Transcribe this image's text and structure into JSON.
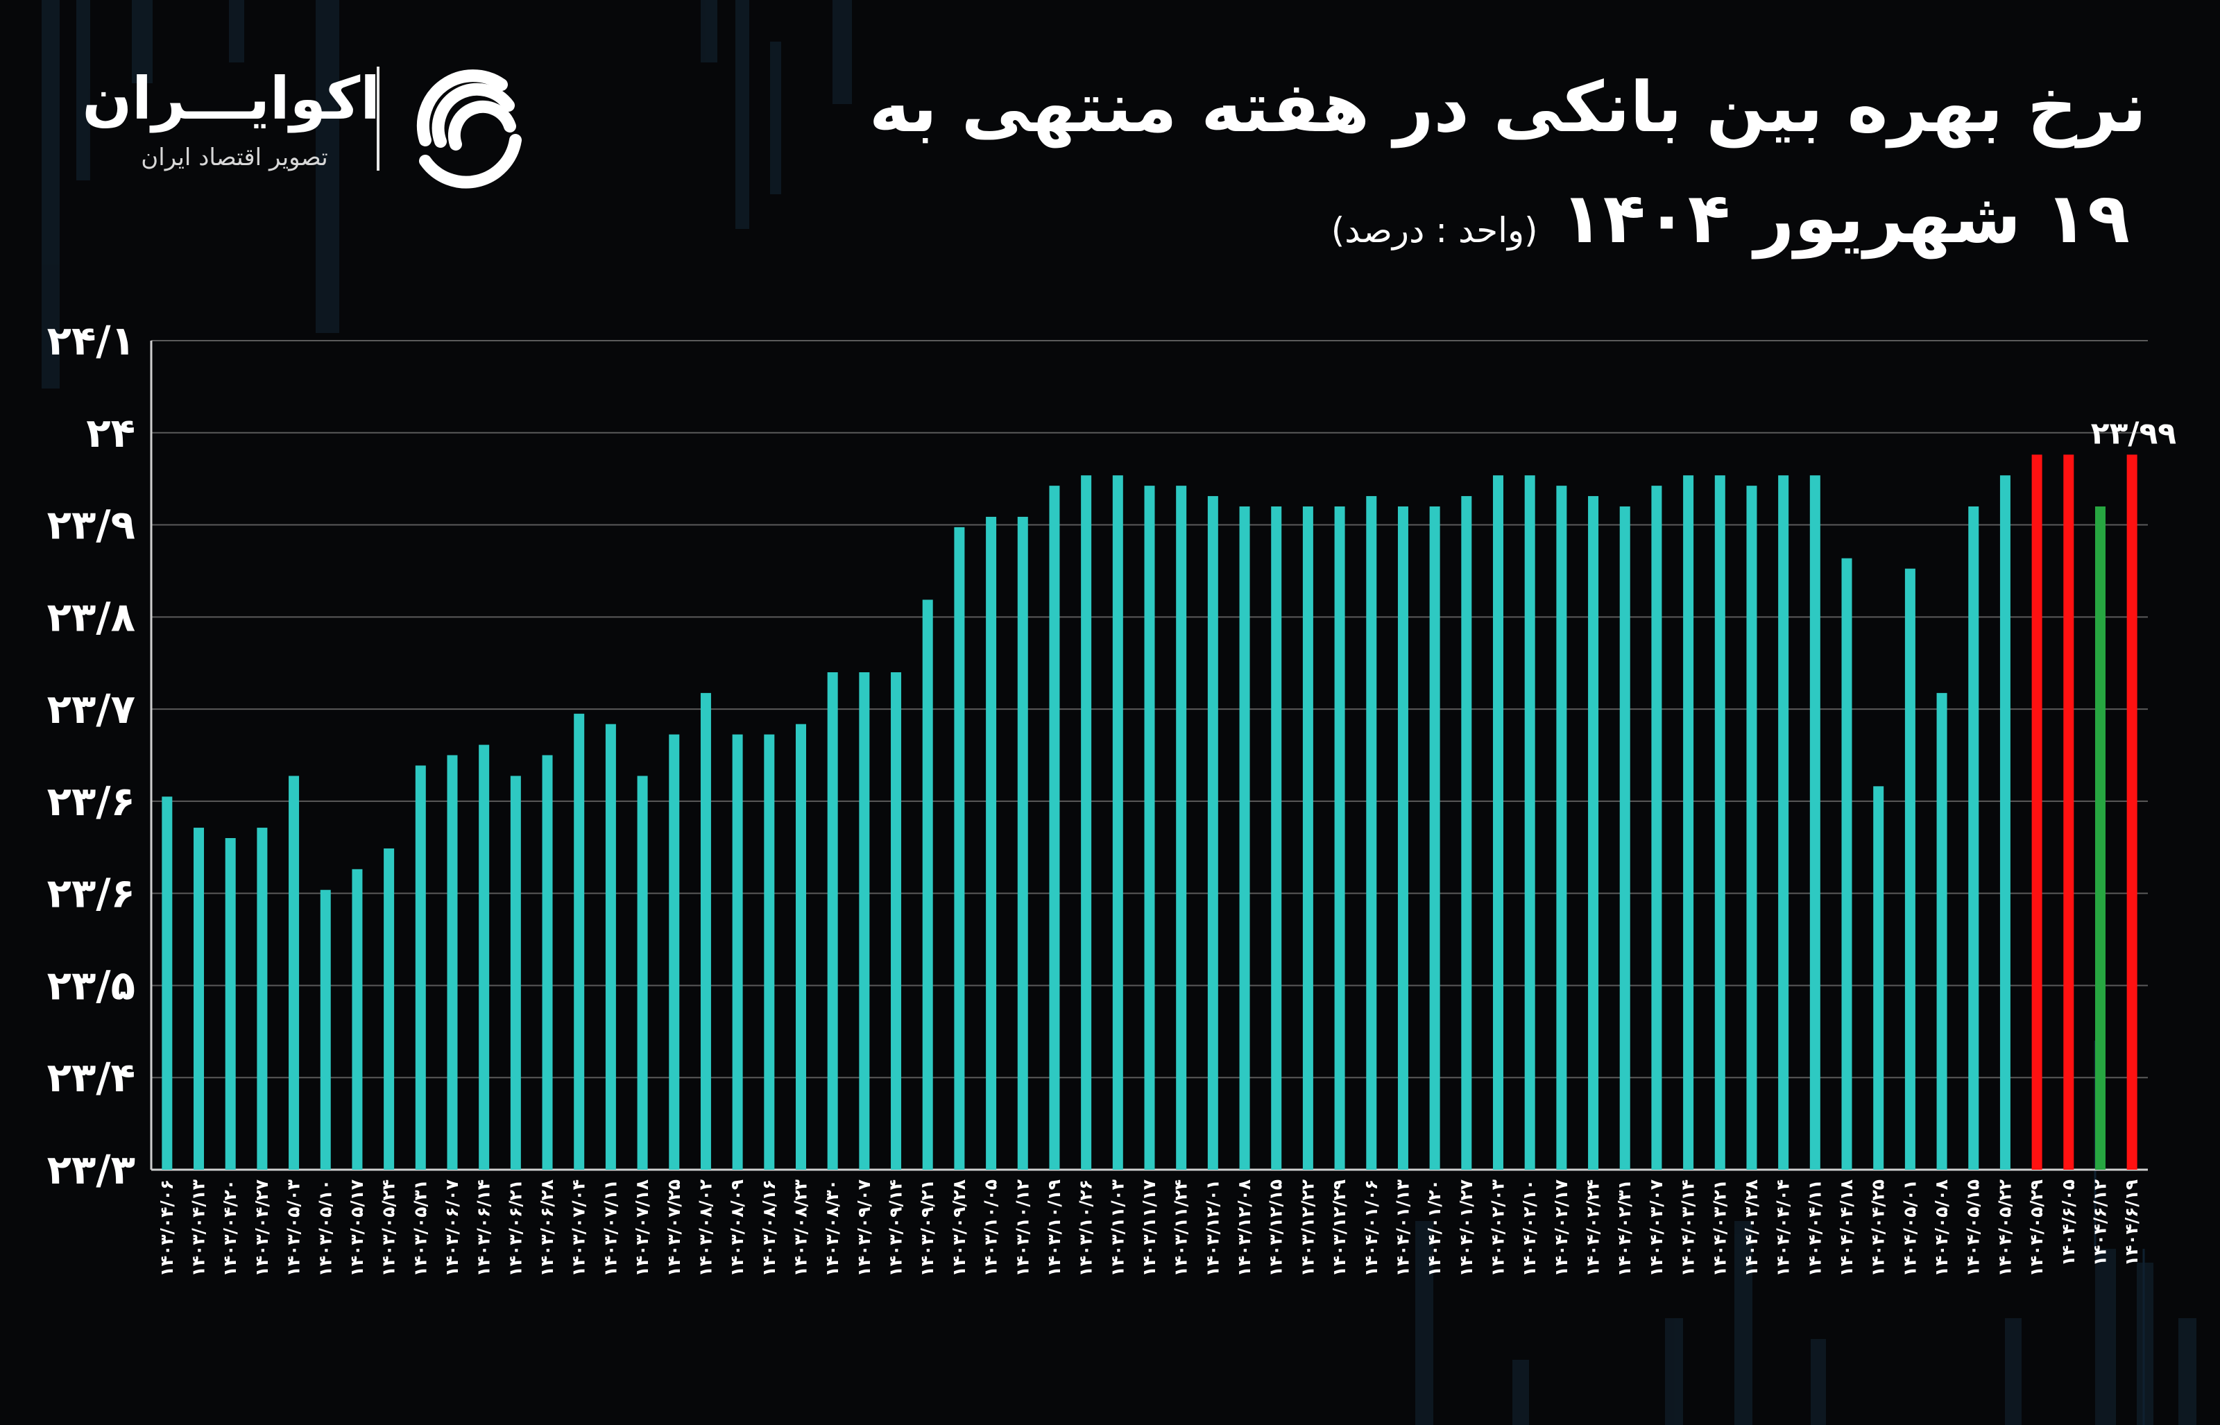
{
  "brand": {
    "name": "اکوایـــران",
    "tagline": "تصویر اقتصاد ایران",
    "logo_icon": "ecoiran-swirl-logo"
  },
  "title": {
    "line1": "نرخ بهره بین بانکی در هفته منتهی به",
    "line2": "۱۹ شهریور ۱۴۰۴",
    "unit": "(واحد : درصد)"
  },
  "colors": {
    "background": "#060709",
    "bar_default": "#2ec9c2",
    "bar_red": "#ff1111",
    "bar_green": "#27a641",
    "grid": "#5a5a5a",
    "text": "#ffffff"
  },
  "chart_data": {
    "type": "bar",
    "ylim": [
      23.3,
      24.1
    ],
    "yticks": [
      "۲۳/۳",
      "۲۳/۴",
      "۲۳/۵",
      "۲۳/۶",
      "۲۳/۶",
      "۲۳/۷",
      "۲۳/۸",
      "۲۳/۹",
      "۲۴",
      "۲۴/۱"
    ],
    "grid": true,
    "categories": [
      "۱۴۰۳/۰۴/۰۶",
      "۱۴۰۳/۰۴/۱۳",
      "۱۴۰۳/۰۴/۲۰",
      "۱۴۰۳/۰۴/۲۷",
      "۱۴۰۳/۰۵/۰۳",
      "۱۴۰۳/۰۵/۱۰",
      "۱۴۰۳/۰۵/۱۷",
      "۱۴۰۳/۰۵/۲۴",
      "۱۴۰۳/۰۵/۳۱",
      "۱۴۰۳/۰۶/۰۷",
      "۱۴۰۳/۰۶/۱۴",
      "۱۴۰۳/۰۶/۲۱",
      "۱۴۰۳/۰۶/۲۸",
      "۱۴۰۳/۰۷/۰۴",
      "۱۴۰۳/۰۷/۱۱",
      "۱۴۰۳/۰۷/۱۸",
      "۱۴۰۳/۰۷/۲۵",
      "۱۴۰۳/۰۸/۰۲",
      "۱۴۰۳/۰۸/۰۹",
      "۱۴۰۳/۰۸/۱۶",
      "۱۴۰۳/۰۸/۲۳",
      "۱۴۰۳/۰۸/۳۰",
      "۱۴۰۳/۰۹/۰۷",
      "۱۴۰۳/۰۹/۱۴",
      "۱۴۰۳/۰۹/۲۱",
      "۱۴۰۳/۰۹/۲۸",
      "۱۴۰۳/۱۰/۰۵",
      "۱۴۰۳/۱۰/۱۲",
      "۱۴۰۳/۱۰/۱۹",
      "۱۴۰۳/۱۰/۲۶",
      "۱۴۰۳/۱۱/۰۳",
      "۱۴۰۳/۱۱/۱۷",
      "۱۴۰۳/۱۱/۲۴",
      "۱۴۰۳/۱۲/۰۱",
      "۱۴۰۳/۱۲/۰۸",
      "۱۴۰۳/۱۲/۱۵",
      "۱۴۰۳/۱۲/۲۲",
      "۱۴۰۳/۱۲/۲۹",
      "۱۴۰۴/۰۱/۰۶",
      "۱۴۰۴/۰۱/۱۳",
      "۱۴۰۴/۰۱/۲۰",
      "۱۴۰۴/۰۱/۲۷",
      "۱۴۰۴/۰۲/۰۳",
      "۱۴۰۴/۰۲/۱۰",
      "۱۴۰۴/۰۲/۱۷",
      "۱۴۰۴/۰۲/۲۴",
      "۱۴۰۴/۰۲/۳۱",
      "۱۴۰۴/۰۳/۰۷",
      "۱۴۰۴/۰۳/۱۴",
      "۱۴۰۴/۰۳/۲۱",
      "۱۴۰۴/۰۳/۲۸",
      "۱۴۰۴/۰۴/۰۴",
      "۱۴۰۴/۰۴/۱۱",
      "۱۴۰۴/۰۴/۱۸",
      "۱۴۰۴/۰۴/۲۵",
      "۱۴۰۴/۰۵/۰۱",
      "۱۴۰۴/۰۵/۰۸",
      "۱۴۰۴/۰۵/۱۵",
      "۱۴۰۴/۰۵/۲۲",
      "۱۴۰۴/۰۵/۲۹",
      "۱۴۰۴/۶/۰۵",
      "۱۴۰۴/۶/۱۲",
      "۱۴۰۴/۶/۱۹"
    ],
    "values": [
      23.66,
      23.63,
      23.62,
      23.63,
      23.68,
      23.57,
      23.59,
      23.61,
      23.69,
      23.7,
      23.71,
      23.68,
      23.7,
      23.74,
      23.73,
      23.68,
      23.72,
      23.76,
      23.72,
      23.72,
      23.73,
      23.78,
      23.78,
      23.78,
      23.85,
      23.92,
      23.93,
      23.93,
      23.96,
      23.97,
      23.97,
      23.96,
      23.96,
      23.95,
      23.94,
      23.94,
      23.94,
      23.94,
      23.95,
      23.94,
      23.94,
      23.95,
      23.97,
      23.97,
      23.96,
      23.95,
      23.94,
      23.96,
      23.97,
      23.97,
      23.96,
      23.97,
      23.97,
      23.89,
      23.67,
      23.88,
      23.76,
      23.94,
      23.97,
      23.99,
      23.99,
      23.94,
      23.99
    ],
    "bar_colors": {
      "59": "red",
      "60": "red",
      "61": "green",
      "62": "red"
    },
    "annotations": [
      {
        "index": 62,
        "text": "۲۳/۹۹"
      }
    ]
  }
}
